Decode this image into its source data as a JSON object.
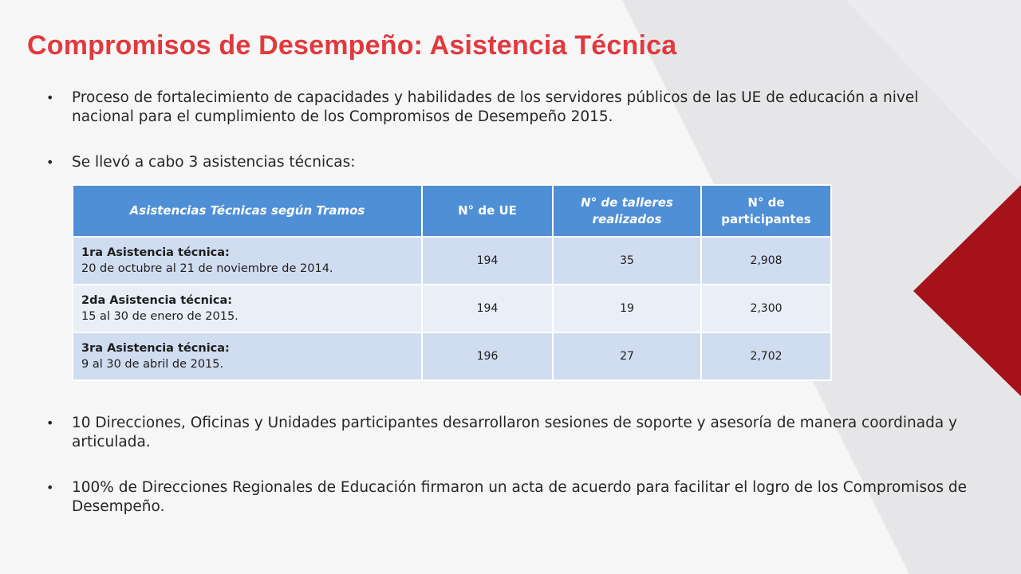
{
  "slide": {
    "title": "Compromisos de Desempeño: Asistencia Técnica",
    "bullets": [
      "Proceso de fortalecimiento de capacidades y habilidades de los servidores públicos de las UE de educación a nivel nacional para el cumplimiento de los Compromisos de Desempeño 2015.",
      "Se llevó a cabo 3 asistencias técnicas:",
      "10 Direcciones, Oficinas y Unidades participantes desarrollaron sesiones de soporte y asesoría de manera coordinada y articulada.",
      "100% de Direcciones Regionales de Educación firmaron un acta de acuerdo para facilitar el logro de los Compromisos de Desempeño."
    ],
    "bullet_glyph": "•"
  },
  "table": {
    "headers": [
      "Asistencias Técnicas según Tramos",
      "N° de UE",
      "N° de talleres realizados",
      "N° de participantes"
    ],
    "rows": [
      {
        "name": "1ra Asistencia técnica:",
        "dates": "20 de octubre al 21 de noviembre de 2014.",
        "ue": "194",
        "talleres": "35",
        "participantes": "2,908"
      },
      {
        "name": "2da Asistencia técnica:",
        "dates": "15 al 30 de enero de 2015.",
        "ue": "194",
        "talleres": "19",
        "participantes": "2,300"
      },
      {
        "name": "3ra Asistencia técnica:",
        "dates": "9 al 30 de abril de 2015.",
        "ue": "196",
        "talleres": "27",
        "participantes": "2,702"
      }
    ]
  },
  "colors": {
    "title": "#e03a3e",
    "header": "#4f8fd6",
    "row_odd": "#d0dcef",
    "row_even": "#e9eef7",
    "accent_red": "#a5121a",
    "background": "#f6f6f6"
  }
}
